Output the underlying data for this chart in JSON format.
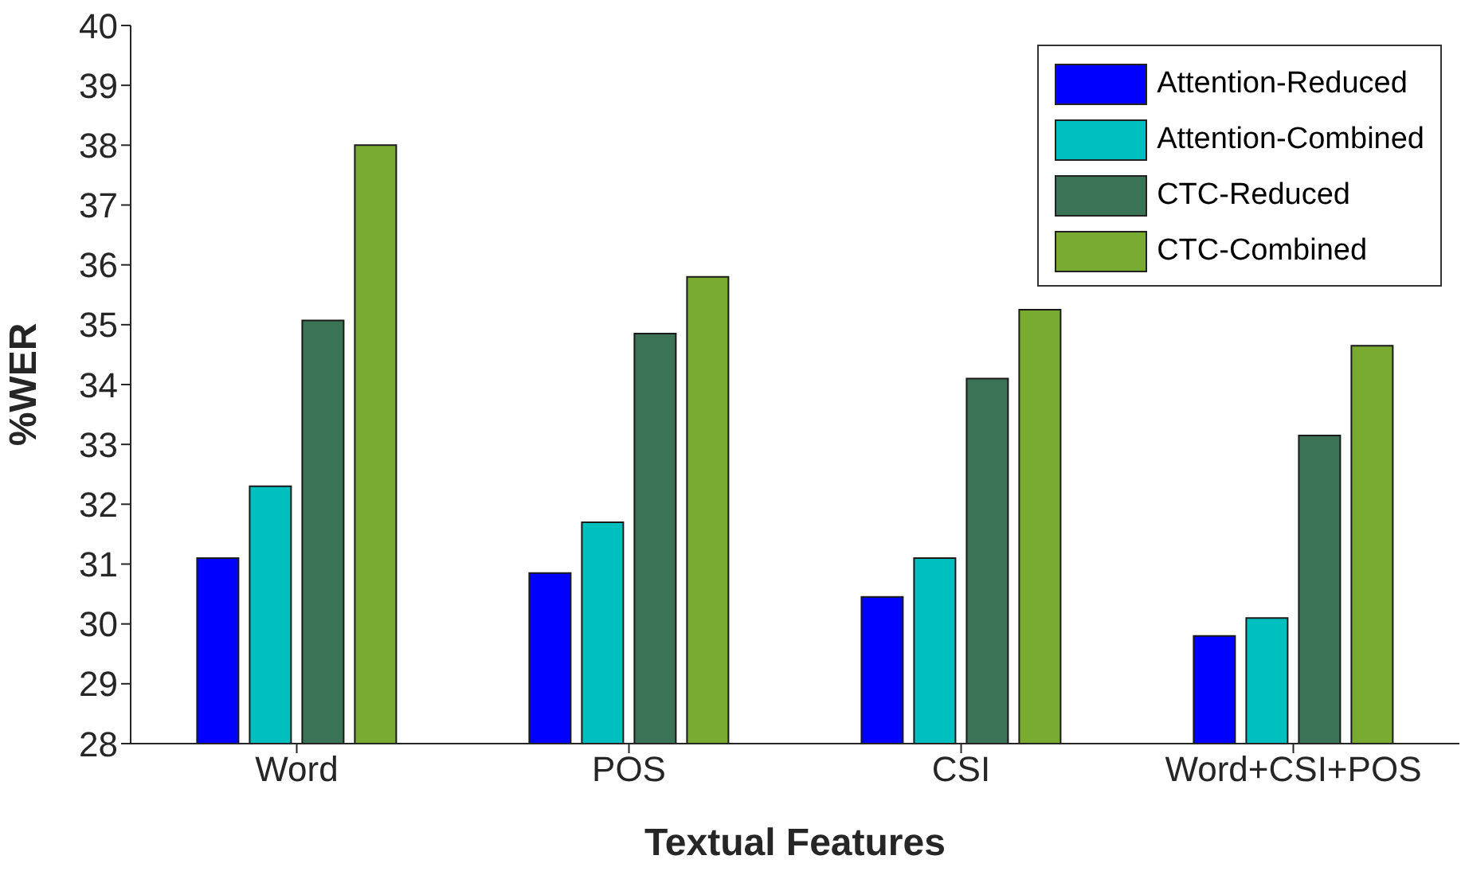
{
  "chart_data": {
    "type": "bar",
    "xlabel": "Textual Features",
    "ylabel": "%WER",
    "categories": [
      "Word",
      "POS",
      "CSI",
      "Word+CSI+POS"
    ],
    "series": [
      {
        "name": "Attention-Reduced",
        "color": "#0000ff",
        "values": [
          31.1,
          30.85,
          30.45,
          29.8
        ]
      },
      {
        "name": "Attention-Combined",
        "color": "#00bfbf",
        "values": [
          32.3,
          31.7,
          31.1,
          30.1
        ]
      },
      {
        "name": "CTC-Reduced",
        "color": "#3b7356",
        "values": [
          35.07,
          34.85,
          34.1,
          33.15
        ]
      },
      {
        "name": "CTC-Combined",
        "color": "#7aab31",
        "values": [
          38.0,
          35.8,
          35.25,
          34.65
        ]
      }
    ],
    "ylim": [
      28,
      40
    ],
    "yticks": [
      28,
      29,
      30,
      31,
      32,
      33,
      34,
      35,
      36,
      37,
      38,
      39,
      40
    ],
    "legend": "top right",
    "grid": false
  }
}
